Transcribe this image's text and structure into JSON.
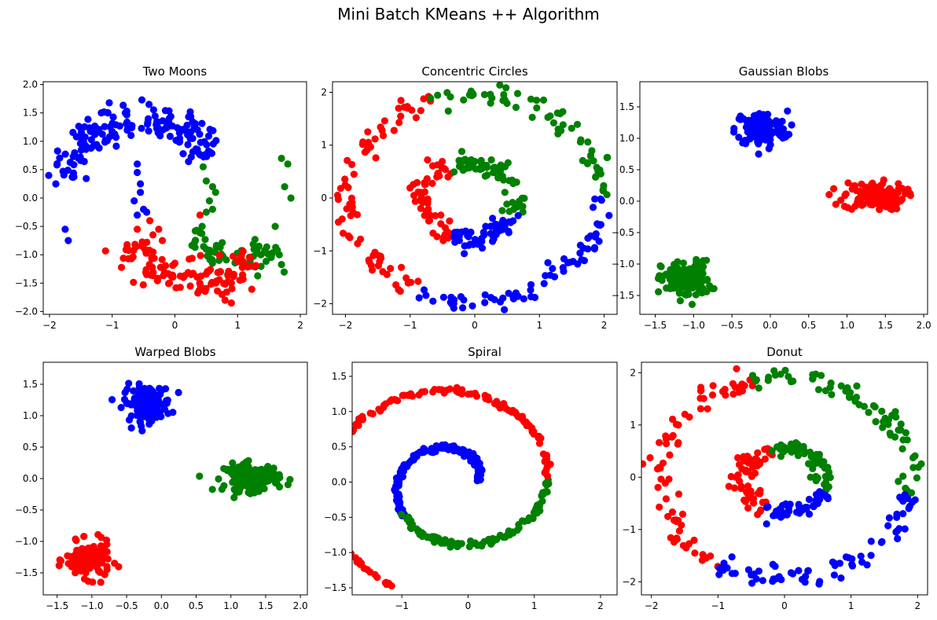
{
  "figure": {
    "suptitle": "Mini Batch KMeans ++ Algorithm"
  },
  "colors": {
    "red": "#ff0000",
    "green": "#008000",
    "blue": "#0000ff"
  },
  "chart_data": [
    {
      "type": "scatter",
      "title": "Two Moons",
      "xlim": [
        -2.1,
        2.1
      ],
      "ylim": [
        -2.05,
        2.05
      ],
      "xticks": [
        -2,
        -1,
        0,
        1,
        2
      ],
      "yticks": [
        -2.0,
        -1.5,
        -1.0,
        -0.5,
        0.0,
        0.5,
        1.0,
        1.5,
        2.0
      ],
      "clusters": [
        {
          "color": "blue",
          "shape": "arc",
          "cx": -0.5,
          "cy": 0.25,
          "r": 1.18,
          "a0": 175,
          "a1": 25,
          "noise": 0.16,
          "n": 160,
          "extra": {
            "x": [
              -1.9,
              -1.75,
              -1.7,
              -0.6,
              -0.55,
              -0.5,
              -0.6,
              -0.65,
              -0.55,
              -0.45,
              -0.6
            ],
            "y": [
              0.25,
              -0.55,
              -0.75,
              0.45,
              0.1,
              -0.2,
              -0.3,
              -0.05,
              0.25,
              -0.25,
              0.6
            ]
          }
        },
        {
          "color": "green",
          "shape": "arc",
          "cx": 1.05,
          "cy": -0.2,
          "r": 0.9,
          "a0": 205,
          "a1": 310,
          "noise": 0.14,
          "n": 60,
          "extra": {
            "x": [
              0.45,
              0.5,
              0.55,
              0.6,
              0.65,
              0.5,
              0.6,
              1.7,
              1.8,
              1.75,
              1.85,
              1.6
            ],
            "y": [
              0.55,
              0.3,
              -0.05,
              -0.2,
              0.1,
              -0.25,
              0.2,
              0.7,
              0.6,
              0.2,
              0.0,
              -0.5
            ]
          }
        },
        {
          "color": "red",
          "shape": "arc",
          "cx": 0.35,
          "cy": -0.25,
          "r": 1.2,
          "a0": 205,
          "a1": 320,
          "noise": 0.15,
          "n": 110,
          "extra": {
            "x": [
              -0.6,
              -0.4,
              -0.35,
              -0.2,
              0.0,
              0.8,
              0.9,
              0.75,
              0.4
            ],
            "y": [
              -0.55,
              -0.4,
              -0.65,
              -0.75,
              -1.15,
              -1.8,
              -1.85,
              -1.7,
              -0.3
            ]
          }
        }
      ]
    },
    {
      "type": "scatter",
      "title": "Concentric Circles",
      "xlim": [
        -2.2,
        2.2
      ],
      "ylim": [
        -2.2,
        2.2
      ],
      "xticks": [
        -2,
        -1,
        0,
        1,
        2
      ],
      "yticks": [
        -2,
        -1,
        0,
        1,
        2
      ],
      "clusters": [
        {
          "color": "red",
          "shape": "ring",
          "cx": 0,
          "cy": 0,
          "r": 1.95,
          "a0": 110,
          "a1": 245,
          "noise": 0.1,
          "n": 75
        },
        {
          "color": "green",
          "shape": "ring",
          "cx": 0,
          "cy": 0,
          "r": 1.95,
          "a0": 0,
          "a1": 110,
          "noise": 0.1,
          "n": 65
        },
        {
          "color": "blue",
          "shape": "ring",
          "cx": 0,
          "cy": 0,
          "r": 1.95,
          "a0": 245,
          "a1": 360,
          "noise": 0.1,
          "n": 70
        },
        {
          "color": "red",
          "shape": "ring",
          "cx": -0.1,
          "cy": -0.05,
          "r": 0.72,
          "a0": 115,
          "a1": 250,
          "noise": 0.09,
          "n": 60
        },
        {
          "color": "green",
          "shape": "ring",
          "cx": -0.1,
          "cy": -0.05,
          "r": 0.72,
          "a0": -20,
          "a1": 115,
          "noise": 0.09,
          "n": 65
        },
        {
          "color": "blue",
          "shape": "ring",
          "cx": -0.1,
          "cy": -0.05,
          "r": 0.72,
          "a0": 250,
          "a1": 340,
          "noise": 0.09,
          "n": 55
        }
      ]
    },
    {
      "type": "scatter",
      "title": "Gaussian Blobs",
      "xlim": [
        -1.7,
        2.05
      ],
      "ylim": [
        -1.8,
        1.9
      ],
      "xticks": [
        -1.5,
        -1.0,
        -0.5,
        0.0,
        0.5,
        1.0,
        1.5,
        2.0
      ],
      "yticks": [
        -1.5,
        -1.0,
        -0.5,
        0.0,
        0.5,
        1.0,
        1.5
      ],
      "clusters": [
        {
          "color": "blue",
          "shape": "blob",
          "cx": -0.12,
          "cy": 1.15,
          "sx": 0.17,
          "sy": 0.14,
          "n": 130
        },
        {
          "color": "red",
          "shape": "blob",
          "cx": 1.35,
          "cy": 0.08,
          "sx": 0.2,
          "sy": 0.11,
          "n": 130
        },
        {
          "color": "green",
          "shape": "blob",
          "cx": -1.1,
          "cy": -1.25,
          "sx": 0.16,
          "sy": 0.15,
          "n": 130
        }
      ]
    },
    {
      "type": "scatter",
      "title": "Warped Blobs",
      "xlim": [
        -1.7,
        2.1
      ],
      "ylim": [
        -1.85,
        1.85
      ],
      "xticks": [
        -1.5,
        -1.0,
        -0.5,
        0.0,
        0.5,
        1.0,
        1.5,
        2.0
      ],
      "yticks": [
        -1.5,
        -1.0,
        -0.5,
        0.0,
        0.5,
        1.0,
        1.5
      ],
      "clusters": [
        {
          "color": "blue",
          "shape": "blob",
          "cx": -0.2,
          "cy": 1.2,
          "sx": 0.17,
          "sy": 0.14,
          "n": 130
        },
        {
          "color": "green",
          "shape": "blob",
          "cx": 1.3,
          "cy": 0.02,
          "sx": 0.2,
          "sy": 0.11,
          "n": 130
        },
        {
          "color": "red",
          "shape": "blob",
          "cx": -1.05,
          "cy": -1.3,
          "sx": 0.16,
          "sy": 0.14,
          "n": 130
        }
      ]
    },
    {
      "type": "scatter",
      "title": "Spiral",
      "xlim": [
        -1.75,
        2.25
      ],
      "ylim": [
        -1.6,
        1.7
      ],
      "xticks": [
        -1,
        0,
        1,
        2
      ],
      "yticks": [
        -1.5,
        -1.0,
        -0.5,
        0.0,
        0.5,
        1.0,
        1.5
      ],
      "clusters": [
        {
          "color": "blue",
          "shape": "spiral",
          "t0": 0.0,
          "t1": 0.36,
          "noise": 0.02,
          "n": 200
        },
        {
          "color": "green",
          "shape": "spiral",
          "t0": 0.36,
          "t1": 0.6,
          "noise": 0.02,
          "n": 130
        },
        {
          "color": "red",
          "shape": "spiral",
          "t0": 0.6,
          "t1": 1.0,
          "noise": 0.02,
          "n": 170
        }
      ]
    },
    {
      "type": "scatter",
      "title": "Donut",
      "xlim": [
        -2.15,
        2.15
      ],
      "ylim": [
        -2.25,
        2.2
      ],
      "xticks": [
        -2,
        -1,
        0,
        1,
        2
      ],
      "yticks": [
        -2,
        -1,
        0,
        1,
        2
      ],
      "clusters": [
        {
          "color": "red",
          "shape": "ring",
          "cx": 0,
          "cy": 0,
          "r": 1.9,
          "a0": 105,
          "a1": 240,
          "noise": 0.1,
          "n": 75
        },
        {
          "color": "green",
          "shape": "ring",
          "cx": 0,
          "cy": 0,
          "r": 1.9,
          "a0": -10,
          "a1": 105,
          "noise": 0.1,
          "n": 70
        },
        {
          "color": "blue",
          "shape": "ring",
          "cx": 0,
          "cy": 0,
          "r": 1.9,
          "a0": 240,
          "a1": 350,
          "noise": 0.1,
          "n": 70
        },
        {
          "color": "red",
          "shape": "ring",
          "cx": 0.0,
          "cy": -0.05,
          "r": 0.62,
          "a0": 110,
          "a1": 240,
          "noise": 0.08,
          "n": 60
        },
        {
          "color": "green",
          "shape": "ring",
          "cx": 0.0,
          "cy": -0.05,
          "r": 0.62,
          "a0": -20,
          "a1": 110,
          "noise": 0.08,
          "n": 60
        },
        {
          "color": "blue",
          "shape": "ring",
          "cx": 0.0,
          "cy": -0.05,
          "r": 0.62,
          "a0": 240,
          "a1": 340,
          "noise": 0.08,
          "n": 50
        }
      ]
    }
  ]
}
